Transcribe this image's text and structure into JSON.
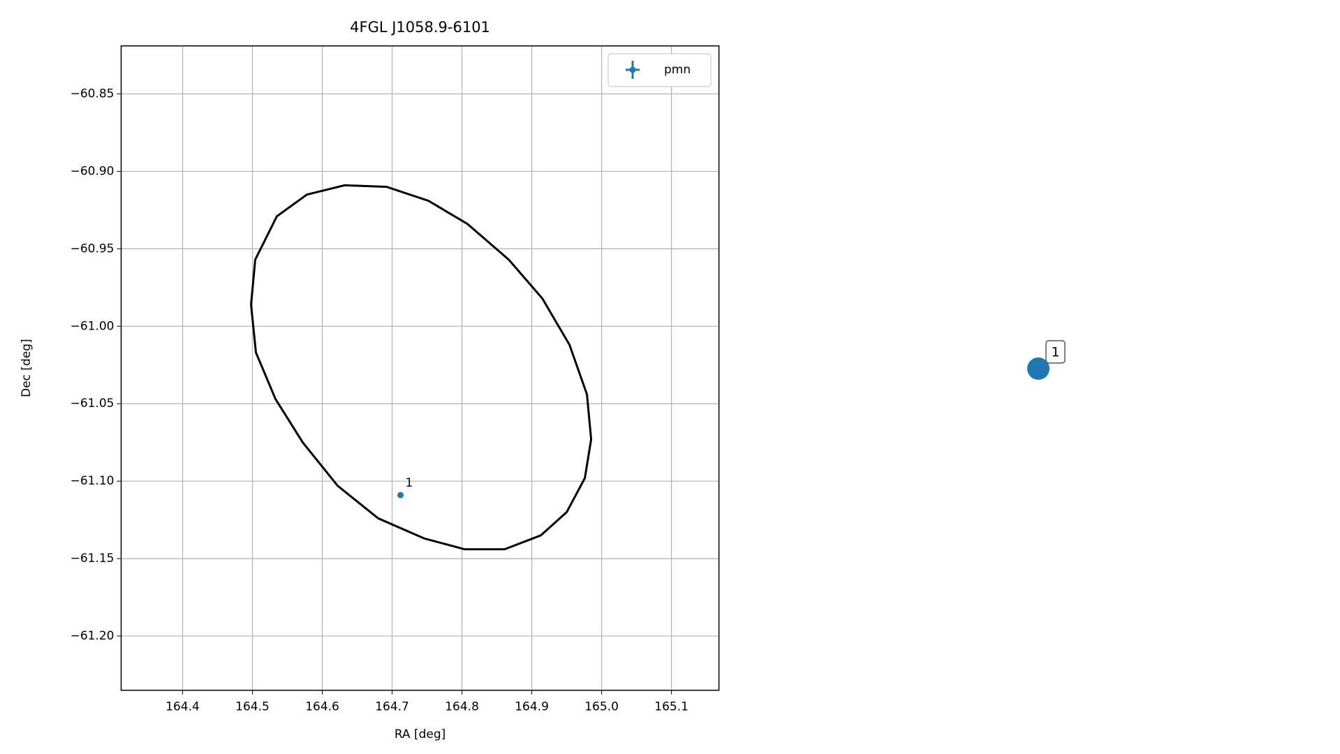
{
  "chart_data": [
    {
      "type": "scatter",
      "title": "4FGL J1058.9-6101",
      "xlabel": "RA [deg]",
      "ylabel": "Dec [deg]",
      "xlim": [
        164.312,
        165.168
      ],
      "ylim": [
        -61.235,
        -60.819
      ],
      "xticks": [
        164.4,
        164.5,
        164.6,
        164.7,
        164.8,
        164.9,
        {
          "value": 165,
          "label": "165.0"
        },
        165.1
      ],
      "yticks": [
        {
          "value": -60.85,
          "label": "−60.85"
        },
        {
          "value": -60.9,
          "label": "−60.90"
        },
        {
          "value": -60.95,
          "label": "−60.95"
        },
        {
          "value": -61.0,
          "label": "−61.00"
        },
        {
          "value": -61.05,
          "label": "−61.05"
        },
        {
          "value": -61.1,
          "label": "−61.10"
        },
        {
          "value": -61.15,
          "label": "−61.15"
        },
        {
          "value": -61.2,
          "label": "−61.20"
        }
      ],
      "grid": true,
      "legend": "upper right",
      "ellipse": {
        "color": "#000000",
        "x": [
          164.498,
          164.504,
          164.535,
          164.578,
          164.632,
          164.692,
          164.752,
          164.808,
          164.867,
          164.915,
          164.954,
          164.979,
          164.985,
          164.976,
          164.95,
          164.913,
          164.861,
          164.804,
          164.746,
          164.68,
          164.622,
          164.572,
          164.533,
          164.505,
          164.498
        ],
        "y": [
          -60.986,
          -60.957,
          -60.929,
          -60.915,
          -60.909,
          -60.91,
          -60.919,
          -60.934,
          -60.957,
          -60.982,
          -61.012,
          -61.044,
          -61.073,
          -61.098,
          -61.12,
          -61.135,
          -61.144,
          -61.144,
          -61.137,
          -61.124,
          -61.103,
          -61.075,
          -61.047,
          -61.017,
          -60.986
        ]
      },
      "series": [
        {
          "name": "pmn",
          "color": "#1f77b4",
          "x": [
            164.712
          ],
          "y": [
            -61.109
          ],
          "labels": [
            "1"
          ]
        }
      ]
    },
    {
      "type": "marker",
      "color": "#1f77b4",
      "labels": [
        "1"
      ]
    }
  ]
}
